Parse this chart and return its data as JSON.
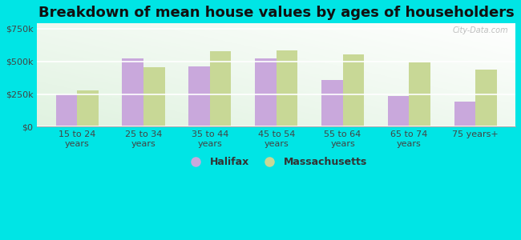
{
  "title": "Breakdown of mean house values by ages of householders",
  "categories": [
    "15 to 24\nyears",
    "25 to 34\nyears",
    "35 to 44\nyears",
    "45 to 54\nyears",
    "55 to 64\nyears",
    "65 to 74\nyears",
    "75 years+"
  ],
  "halifax_values": [
    245000,
    520000,
    460000,
    520000,
    355000,
    237000,
    190000
  ],
  "massachusetts_values": [
    278000,
    455000,
    580000,
    585000,
    555000,
    490000,
    435000
  ],
  "halifax_color": "#c9a8dc",
  "massachusetts_color": "#c8d896",
  "background_color": "#00e5e5",
  "ylabel_ticks": [
    0,
    250000,
    500000,
    750000
  ],
  "ylabel_labels": [
    "$0",
    "$250k",
    "$500k",
    "$750k"
  ],
  "ylim": [
    0,
    790000
  ],
  "bar_width": 0.32,
  "legend_labels": [
    "Halifax",
    "Massachusetts"
  ],
  "title_fontsize": 13,
  "tick_fontsize": 8,
  "legend_fontsize": 9,
  "watermark": "City-Data.com"
}
